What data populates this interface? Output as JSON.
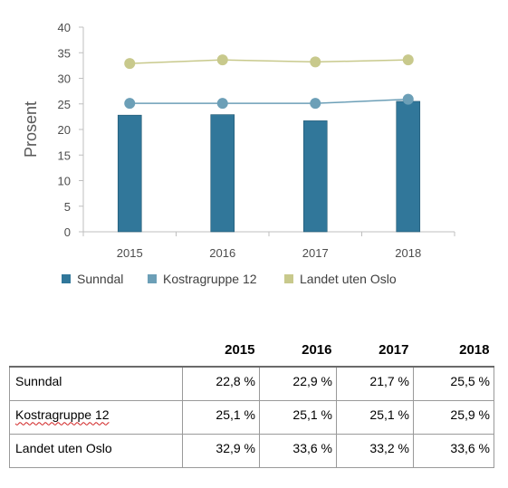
{
  "chart_data": {
    "type": "bar+line",
    "categories": [
      "2015",
      "2016",
      "2017",
      "2018"
    ],
    "ylabel": "Prosent",
    "ylim": [
      0,
      40
    ],
    "yticks": [
      0,
      5,
      10,
      15,
      20,
      25,
      30,
      35,
      40
    ],
    "grid": false,
    "legend_position": "bottom",
    "series": [
      {
        "name": "Sunndal",
        "kind": "bar",
        "color": "#31779a",
        "values": [
          22.8,
          22.9,
          21.7,
          25.5
        ]
      },
      {
        "name": "Kostragruppe 12",
        "kind": "line",
        "color": "#6c9fb7",
        "values": [
          25.1,
          25.1,
          25.1,
          25.9
        ]
      },
      {
        "name": "Landet uten Oslo",
        "kind": "line",
        "color": "#c8c98c",
        "values": [
          32.9,
          33.6,
          33.2,
          33.6
        ]
      }
    ]
  },
  "table": {
    "years": [
      "2015",
      "2016",
      "2017",
      "2018"
    ],
    "rows": [
      {
        "label": "Sunndal",
        "values": [
          "22,8 %",
          "22,9 %",
          "21,7 %",
          "25,5 %"
        ]
      },
      {
        "label": "Kostragruppe 12",
        "values": [
          "25,1 %",
          "25,1 %",
          "25,1 %",
          "25,9 %"
        ]
      },
      {
        "label": "Landet uten Oslo",
        "values": [
          "32,9 %",
          "33,6 %",
          "33,2 %",
          "33,6 %"
        ]
      }
    ]
  }
}
